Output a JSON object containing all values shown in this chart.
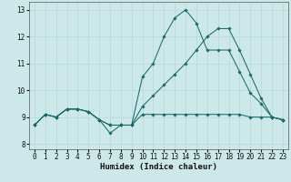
{
  "xlabel": "Humidex (Indice chaleur)",
  "xlim": [
    -0.5,
    23.5
  ],
  "ylim": [
    7.8,
    13.3
  ],
  "xticks": [
    0,
    1,
    2,
    3,
    4,
    5,
    6,
    7,
    8,
    9,
    10,
    11,
    12,
    13,
    14,
    15,
    16,
    17,
    18,
    19,
    20,
    21,
    22,
    23
  ],
  "yticks": [
    8,
    9,
    10,
    11,
    12,
    13
  ],
  "bg_color": "#cce8e8",
  "line_color": "#1a6b6b",
  "grid_color": "#b8d8d8",
  "lines": [
    {
      "x": [
        0,
        1,
        2,
        3,
        4,
        5,
        6,
        7,
        8,
        9,
        10,
        11,
        12,
        13,
        14,
        15,
        16,
        17,
        18,
        19,
        20,
        21,
        22,
        23
      ],
      "y": [
        8.7,
        9.1,
        9.0,
        9.3,
        9.3,
        9.2,
        8.9,
        8.4,
        8.7,
        8.7,
        10.5,
        11.0,
        12.0,
        12.7,
        13.0,
        12.5,
        11.5,
        11.5,
        11.5,
        10.7,
        9.9,
        9.5,
        9.0,
        8.9
      ]
    },
    {
      "x": [
        0,
        1,
        2,
        3,
        4,
        5,
        6,
        7,
        8,
        9,
        10,
        11,
        12,
        13,
        14,
        15,
        16,
        17,
        18,
        19,
        20,
        21,
        22,
        23
      ],
      "y": [
        8.7,
        9.1,
        9.0,
        9.3,
        9.3,
        9.2,
        8.9,
        8.7,
        8.7,
        8.7,
        9.1,
        9.1,
        9.1,
        9.1,
        9.1,
        9.1,
        9.1,
        9.1,
        9.1,
        9.1,
        9.0,
        9.0,
        9.0,
        8.9
      ]
    },
    {
      "x": [
        0,
        1,
        2,
        3,
        4,
        5,
        6,
        7,
        8,
        9,
        10,
        11,
        12,
        13,
        14,
        15,
        16,
        17,
        18,
        19,
        20,
        21,
        22,
        23
      ],
      "y": [
        8.7,
        9.1,
        9.0,
        9.3,
        9.3,
        9.2,
        8.9,
        8.7,
        8.7,
        8.7,
        9.4,
        9.8,
        10.2,
        10.6,
        11.0,
        11.5,
        12.0,
        12.3,
        12.3,
        11.5,
        10.6,
        9.7,
        9.0,
        8.9
      ]
    }
  ]
}
